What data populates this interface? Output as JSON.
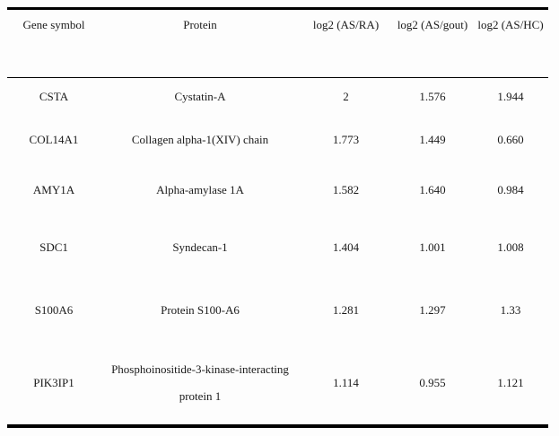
{
  "table": {
    "columns": [
      {
        "key": "gene",
        "label": "Gene symbol"
      },
      {
        "key": "protein",
        "label": "Protein"
      },
      {
        "key": "as_ra",
        "label": "log2 (AS/RA)"
      },
      {
        "key": "as_gout",
        "label": "log2 (AS/gout)"
      },
      {
        "key": "as_hc",
        "label": "log2 (AS/HC)"
      }
    ],
    "rows": [
      {
        "gene": "CSTA",
        "protein": "Cystatin-A",
        "as_ra": "2",
        "as_gout": "1.576",
        "as_hc": "1.944"
      },
      {
        "gene": "COL14A1",
        "protein": "Collagen alpha-1(XIV) chain",
        "as_ra": "1.773",
        "as_gout": "1.449",
        "as_hc": "0.660"
      },
      {
        "gene": "AMY1A",
        "protein": "Alpha-amylase 1A",
        "as_ra": "1.582",
        "as_gout": "1.640",
        "as_hc": "0.984"
      },
      {
        "gene": "SDC1",
        "protein": "Syndecan-1",
        "as_ra": "1.404",
        "as_gout": "1.001",
        "as_hc": "1.008"
      },
      {
        "gene": "S100A6",
        "protein": "Protein S100-A6",
        "as_ra": "1.281",
        "as_gout": "1.297",
        "as_hc": "1.33"
      },
      {
        "gene": "PIK3IP1",
        "protein": "Phosphoinositide-3-kinase-interacting protein 1",
        "as_ra": "1.114",
        "as_gout": "0.955",
        "as_hc": "1.121"
      }
    ]
  },
  "chart_data": {
    "type": "table",
    "columns": [
      "Gene symbol",
      "Protein",
      "log2 (AS/RA)",
      "log2 (AS/gout)",
      "log2 (AS/HC)"
    ],
    "rows": [
      [
        "CSTA",
        "Cystatin-A",
        "2",
        "1.576",
        "1.944"
      ],
      [
        "COL14A1",
        "Collagen alpha-1(XIV) chain",
        "1.773",
        "1.449",
        "0.660"
      ],
      [
        "AMY1A",
        "Alpha-amylase 1A",
        "1.582",
        "1.640",
        "0.984"
      ],
      [
        "SDC1",
        "Syndecan-1",
        "1.404",
        "1.001",
        "1.008"
      ],
      [
        "S100A6",
        "Protein S100-A6",
        "1.281",
        "1.297",
        "1.33"
      ],
      [
        "PIK3IP1",
        "Phosphoinositide-3-kinase-interacting protein 1",
        "1.114",
        "0.955",
        "1.121"
      ]
    ]
  },
  "colors": {
    "background": "#fdfdfd",
    "text": "#1a1a1a",
    "rule": "#000000"
  }
}
